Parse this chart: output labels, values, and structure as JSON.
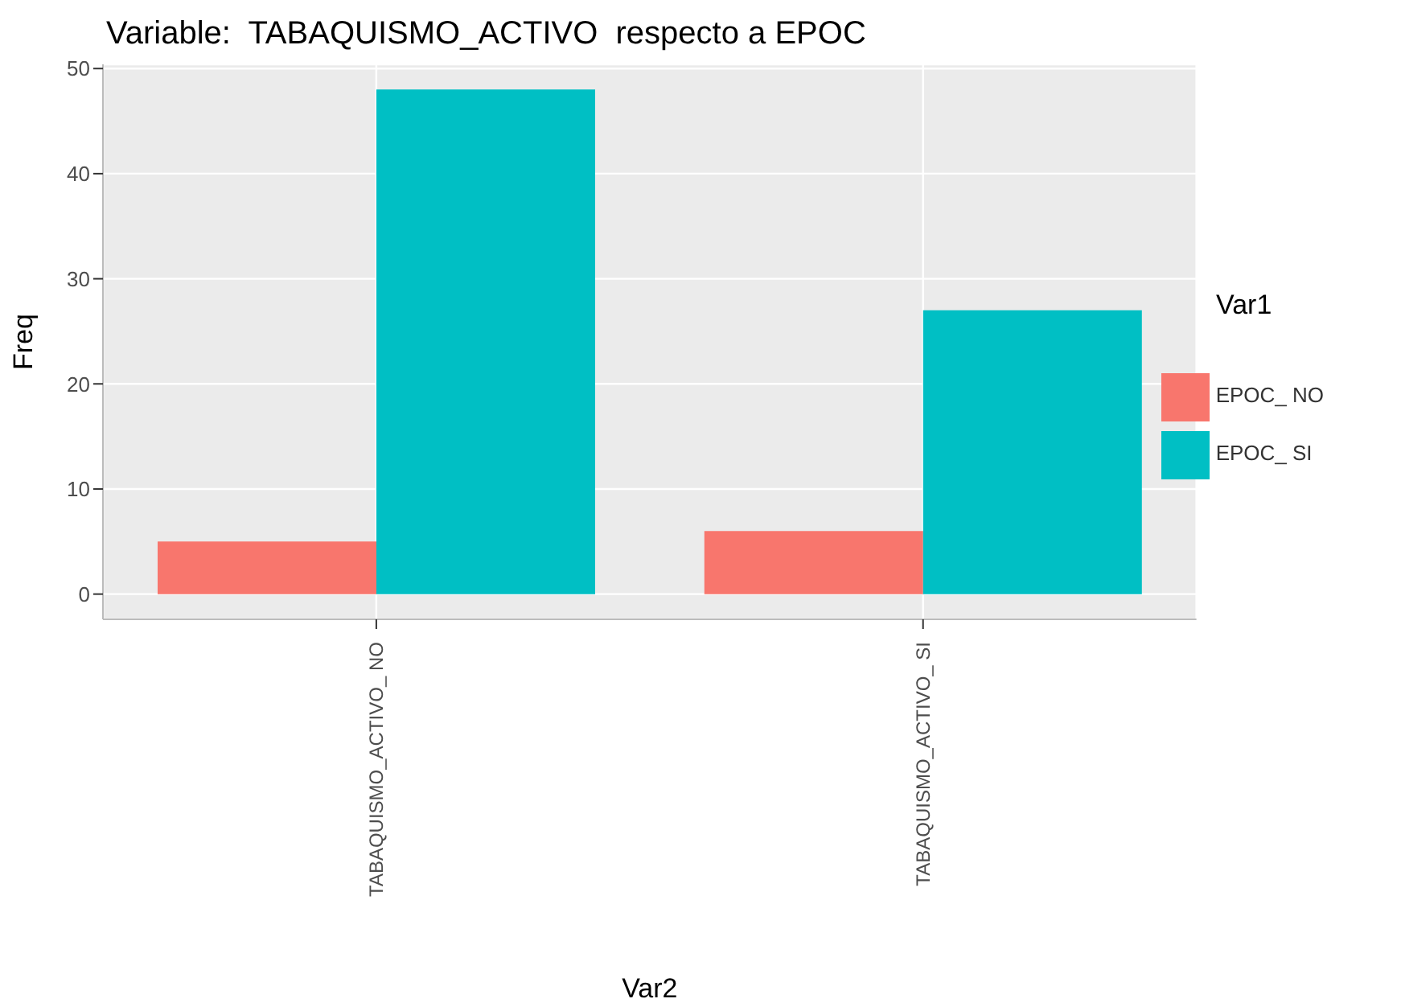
{
  "chart_data": {
    "type": "bar",
    "title": "Variable:  TABAQUISMO_ACTIVO  respecto a EPOC",
    "xlabel": "Var2",
    "ylabel": "Freq",
    "legend_title": "Var1",
    "categories": [
      "TABAQUISMO_ACTIVO_ NO",
      "TABAQUISMO_ACTIVO_ SI"
    ],
    "series": [
      {
        "name": "EPOC_ NO",
        "color": "#f8766d",
        "values": [
          5,
          6
        ]
      },
      {
        "name": "EPOC_ SI",
        "color": "#00bfc4",
        "values": [
          48,
          27
        ]
      }
    ],
    "ylim": [
      -2.4,
      50.4
    ],
    "yticks": [
      0,
      10,
      20,
      30,
      40,
      50
    ],
    "grid": true,
    "legend": "right"
  }
}
